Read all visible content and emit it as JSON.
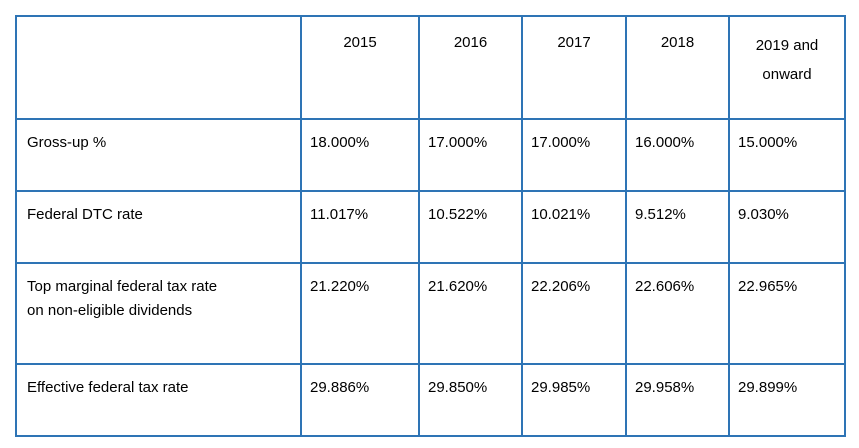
{
  "table": {
    "header": {
      "corner": "",
      "years": [
        "2015",
        "2016",
        "2017",
        "2018",
        "2019 and onward"
      ]
    },
    "rows": [
      {
        "label": "Gross-up %",
        "values": [
          "18.000%",
          "17.000%",
          "17.000%",
          "16.000%",
          "15.000%"
        ]
      },
      {
        "label": "Federal DTC rate",
        "values": [
          "11.017%",
          "10.522%",
          "10.021%",
          "9.512%",
          "9.030%"
        ]
      },
      {
        "label_line1": "Top marginal federal tax rate",
        "label_line2": "on non-eligible dividends",
        "values": [
          "21.220%",
          "21.620%",
          "22.206%",
          "22.606%",
          "22.965%"
        ]
      },
      {
        "label": "Effective federal tax rate",
        "values": [
          "29.886%",
          "29.850%",
          "29.985%",
          "29.958%",
          "29.899%"
        ]
      }
    ],
    "border_color": "#2e74b5"
  }
}
